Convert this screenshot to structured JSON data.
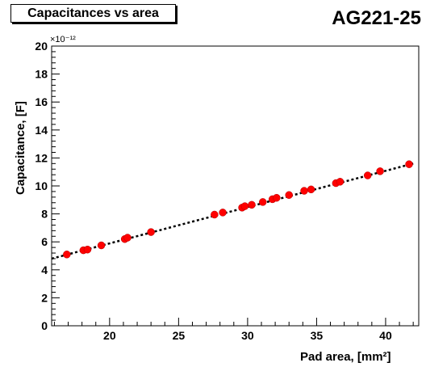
{
  "title_label": "Capacitances vs area",
  "sample_label": "AG221-25",
  "chart_data": {
    "type": "scatter",
    "title": "Capacitances vs area",
    "xlabel": "Pad area, [mm²]",
    "ylabel": "Capacitance, [F]",
    "y_multiplier": "×10⁻¹²",
    "xlim": [
      15.8,
      42.4
    ],
    "ylim": [
      0,
      20
    ],
    "x_ticks": [
      20,
      25,
      30,
      35,
      40
    ],
    "y_ticks": [
      0,
      2,
      4,
      6,
      8,
      10,
      12,
      14,
      16,
      18,
      20
    ],
    "grid": false,
    "points": [
      {
        "x": 16.9,
        "y": 5.1
      },
      {
        "x": 18.1,
        "y": 5.4
      },
      {
        "x": 18.4,
        "y": 5.45
      },
      {
        "x": 19.4,
        "y": 5.75
      },
      {
        "x": 21.1,
        "y": 6.2
      },
      {
        "x": 21.3,
        "y": 6.3
      },
      {
        "x": 23.0,
        "y": 6.7
      },
      {
        "x": 27.6,
        "y": 7.95
      },
      {
        "x": 28.2,
        "y": 8.1
      },
      {
        "x": 29.6,
        "y": 8.45
      },
      {
        "x": 29.8,
        "y": 8.55
      },
      {
        "x": 30.3,
        "y": 8.65
      },
      {
        "x": 31.1,
        "y": 8.85
      },
      {
        "x": 31.8,
        "y": 9.05
      },
      {
        "x": 32.1,
        "y": 9.15
      },
      {
        "x": 33.0,
        "y": 9.35
      },
      {
        "x": 34.1,
        "y": 9.65
      },
      {
        "x": 34.6,
        "y": 9.75
      },
      {
        "x": 36.4,
        "y": 10.2
      },
      {
        "x": 36.7,
        "y": 10.3
      },
      {
        "x": 38.7,
        "y": 10.75
      },
      {
        "x": 39.6,
        "y": 11.05
      },
      {
        "x": 41.7,
        "y": 11.55
      }
    ],
    "fit_line": {
      "x": [
        15.8,
        42.0
      ],
      "y": [
        4.8,
        11.6
      ]
    },
    "marker_color": "#ff0000",
    "fit_color": "#000000"
  }
}
